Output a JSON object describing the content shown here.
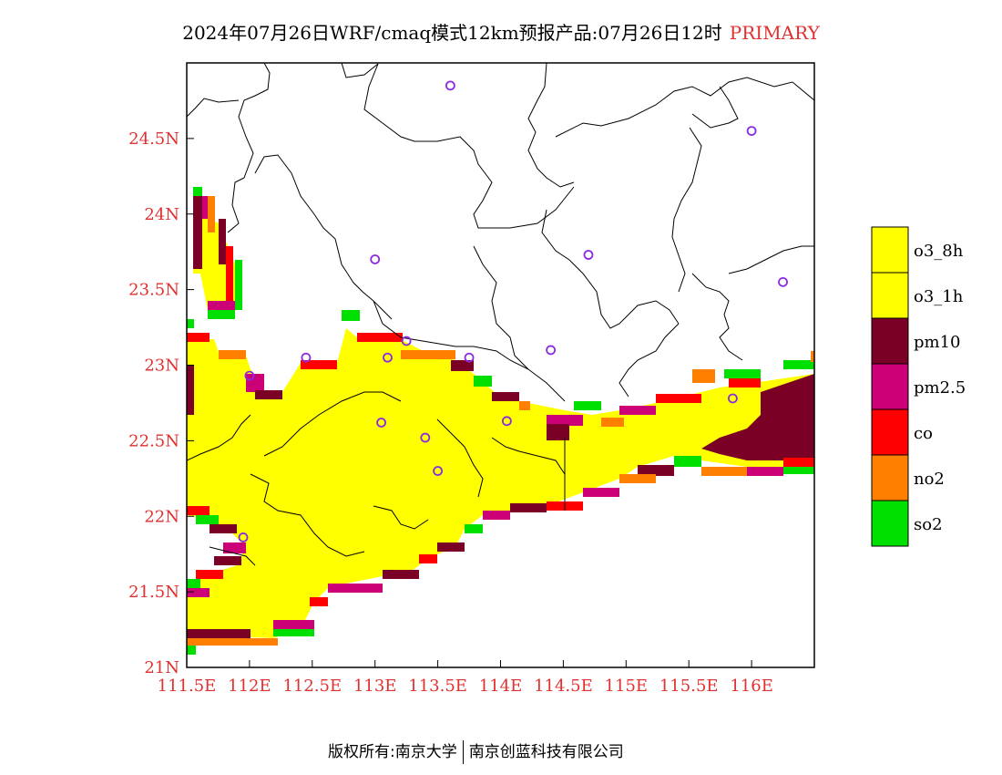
{
  "title": {
    "main": "2024年07月26日WRF/cmaq模式12km预报产品:07月26日12时",
    "tag": "PRIMARY"
  },
  "footer": {
    "left": "版权所有:南京大学",
    "right": "南京创蓝科技有限公司"
  },
  "map": {
    "lon_range": [
      111.5,
      116.5
    ],
    "lat_range": [
      21.0,
      25.0
    ],
    "x_ticks": [
      "111.5E",
      "112E",
      "112.5E",
      "113E",
      "113.5E",
      "114E",
      "114.5E",
      "115E",
      "115.5E",
      "116E"
    ],
    "y_ticks": [
      "21N",
      "21.5N",
      "22N",
      "22.5N",
      "23N",
      "23.5N",
      "24N",
      "24.5N"
    ],
    "station_color": "#8a2be2",
    "stations": [
      [
        113.6,
        24.85
      ],
      [
        116.0,
        24.55
      ],
      [
        113.0,
        23.7
      ],
      [
        114.7,
        23.73
      ],
      [
        116.25,
        23.55
      ],
      [
        113.25,
        23.16
      ],
      [
        112.45,
        23.05
      ],
      [
        113.1,
        23.05
      ],
      [
        113.75,
        23.05
      ],
      [
        114.4,
        23.1
      ],
      [
        112.0,
        22.93
      ],
      [
        115.85,
        22.78
      ],
      [
        113.05,
        22.62
      ],
      [
        113.4,
        22.52
      ],
      [
        114.05,
        22.63
      ],
      [
        113.5,
        22.3
      ],
      [
        111.95,
        21.86
      ]
    ]
  },
  "legend": {
    "items": [
      {
        "label": "o3_8h",
        "color": "#ffff00"
      },
      {
        "label": "o3_1h",
        "color": "#ffff00"
      },
      {
        "label": "pm10",
        "color": "#7b0026"
      },
      {
        "label": "pm2.5",
        "color": "#cc0077"
      },
      {
        "label": "co",
        "color": "#ff0000"
      },
      {
        "label": "no2",
        "color": "#ff8000"
      },
      {
        "label": "so2",
        "color": "#00e000"
      }
    ]
  }
}
